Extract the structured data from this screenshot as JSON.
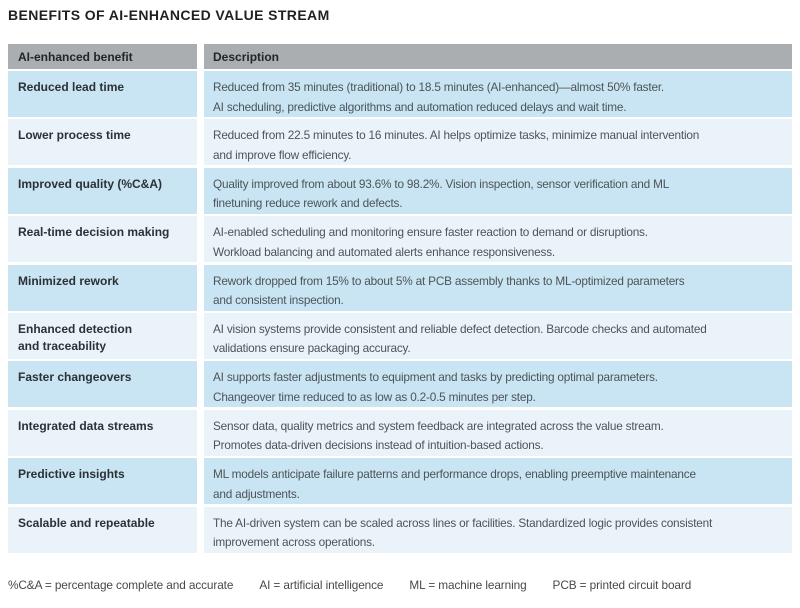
{
  "title": "BENEFITS OF AI-ENHANCED VALUE STREAM",
  "colors": {
    "header_bg": "#abaeb1",
    "row_blue": "#c9e4f2",
    "row_light": "#e9f3f9",
    "title_text": "#231f20",
    "label_text": "#2b3135",
    "body_text": "#4d5458"
  },
  "table": {
    "headers": [
      "AI-enhanced benefit",
      "Description"
    ],
    "rows": [
      {
        "benefit_lines": [
          "Reduced lead time"
        ],
        "desc_lines": [
          "Reduced from 35 minutes (traditional) to 18.5 minutes (AI-enhanced)—almost 50% faster.",
          "AI scheduling, predictive algorithms and automation reduced delays and wait time."
        ]
      },
      {
        "benefit_lines": [
          "Lower process time"
        ],
        "desc_lines": [
          "Reduced from 22.5 minutes to 16 minutes. AI helps optimize tasks, minimize manual intervention",
          "and improve flow efficiency."
        ]
      },
      {
        "benefit_lines": [
          "Improved quality (%C&A)"
        ],
        "desc_lines": [
          "Quality improved from about 93.6% to 98.2%. Vision inspection, sensor verification and ML",
          "finetuning reduce rework and defects."
        ]
      },
      {
        "benefit_lines": [
          "Real-time decision making"
        ],
        "desc_lines": [
          "AI-enabled scheduling and monitoring ensure faster reaction to demand or disruptions.",
          "Workload balancing and automated alerts enhance responsiveness."
        ]
      },
      {
        "benefit_lines": [
          "Minimized rework"
        ],
        "desc_lines": [
          "Rework dropped from 15% to about 5% at PCB assembly thanks to ML-optimized parameters",
          "and consistent inspection."
        ]
      },
      {
        "benefit_lines": [
          "Enhanced detection",
          "and traceability"
        ],
        "desc_lines": [
          "AI vision systems provide consistent and reliable defect detection. Barcode checks and automated",
          "validations ensure packaging accuracy."
        ]
      },
      {
        "benefit_lines": [
          "Faster changeovers"
        ],
        "desc_lines": [
          "AI supports faster adjustments to equipment and tasks by predicting optimal parameters.",
          "Changeover time reduced to as low as 0.2-0.5 minutes per step."
        ]
      },
      {
        "benefit_lines": [
          "Integrated data streams"
        ],
        "desc_lines": [
          "Sensor data, quality metrics and system feedback are integrated across the value stream.",
          "Promotes data-driven decisions instead of intuition-based actions."
        ]
      },
      {
        "benefit_lines": [
          "Predictive insights"
        ],
        "desc_lines": [
          "ML models anticipate failure patterns and performance drops, enabling preemptive maintenance",
          "and adjustments."
        ]
      },
      {
        "benefit_lines": [
          "Scalable and repeatable"
        ],
        "desc_lines": [
          "The AI-driven system can be scaled across lines or facilities. Standardized logic provides consistent",
          "improvement across operations."
        ]
      }
    ]
  },
  "footnotes": [
    "%C&A = percentage complete and accurate",
    "AI = artificial intelligence",
    "ML = machine learning",
    "PCB = printed circuit board"
  ]
}
